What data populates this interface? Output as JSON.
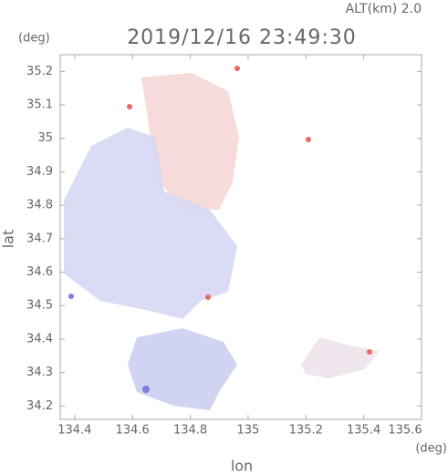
{
  "chart_data": {
    "type": "map",
    "title": "2019/12/16 23:49:30",
    "subtitle": "ALT(km) 2.0",
    "y_unit": "(deg)",
    "x_unit": "(deg)",
    "y_label": "lat",
    "x_label": "lon",
    "xlim": [
      134.35,
      135.6
    ],
    "xticks": [
      134.4,
      134.6,
      134.8,
      135.0,
      135.2,
      135.4,
      135.6
    ],
    "ylim": [
      34.16,
      35.25
    ],
    "yticks": [
      34.2,
      34.3,
      34.4,
      34.5,
      34.6,
      34.7,
      34.8,
      34.9,
      35.0,
      35.1,
      35.2
    ]
  }
}
